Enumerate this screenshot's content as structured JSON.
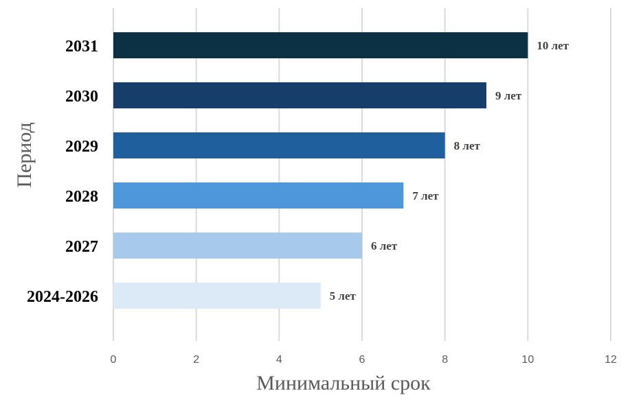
{
  "chart_data": {
    "type": "bar",
    "orientation": "horizontal",
    "categories": [
      "2024-2026",
      "2027",
      "2028",
      "2029",
      "2030",
      "2031"
    ],
    "values": [
      5,
      6,
      7,
      8,
      9,
      10
    ],
    "data_labels": [
      "5 лет",
      "6 лет",
      "7 лет",
      "8 лет",
      "9 лет",
      "10 лет"
    ],
    "bar_colors": [
      "#dce9f6",
      "#a7caec",
      "#4f97db",
      "#1f5f9e",
      "#173e6b",
      "#0d3144"
    ],
    "xlabel": "Минимальный срок",
    "ylabel": "Период",
    "xlim": [
      0,
      12
    ],
    "xticks": [
      0,
      2,
      4,
      6,
      8,
      10,
      12
    ],
    "xtick_labels": [
      "0",
      "2",
      "4",
      "6",
      "8",
      "10",
      "12"
    ],
    "grid": true
  }
}
